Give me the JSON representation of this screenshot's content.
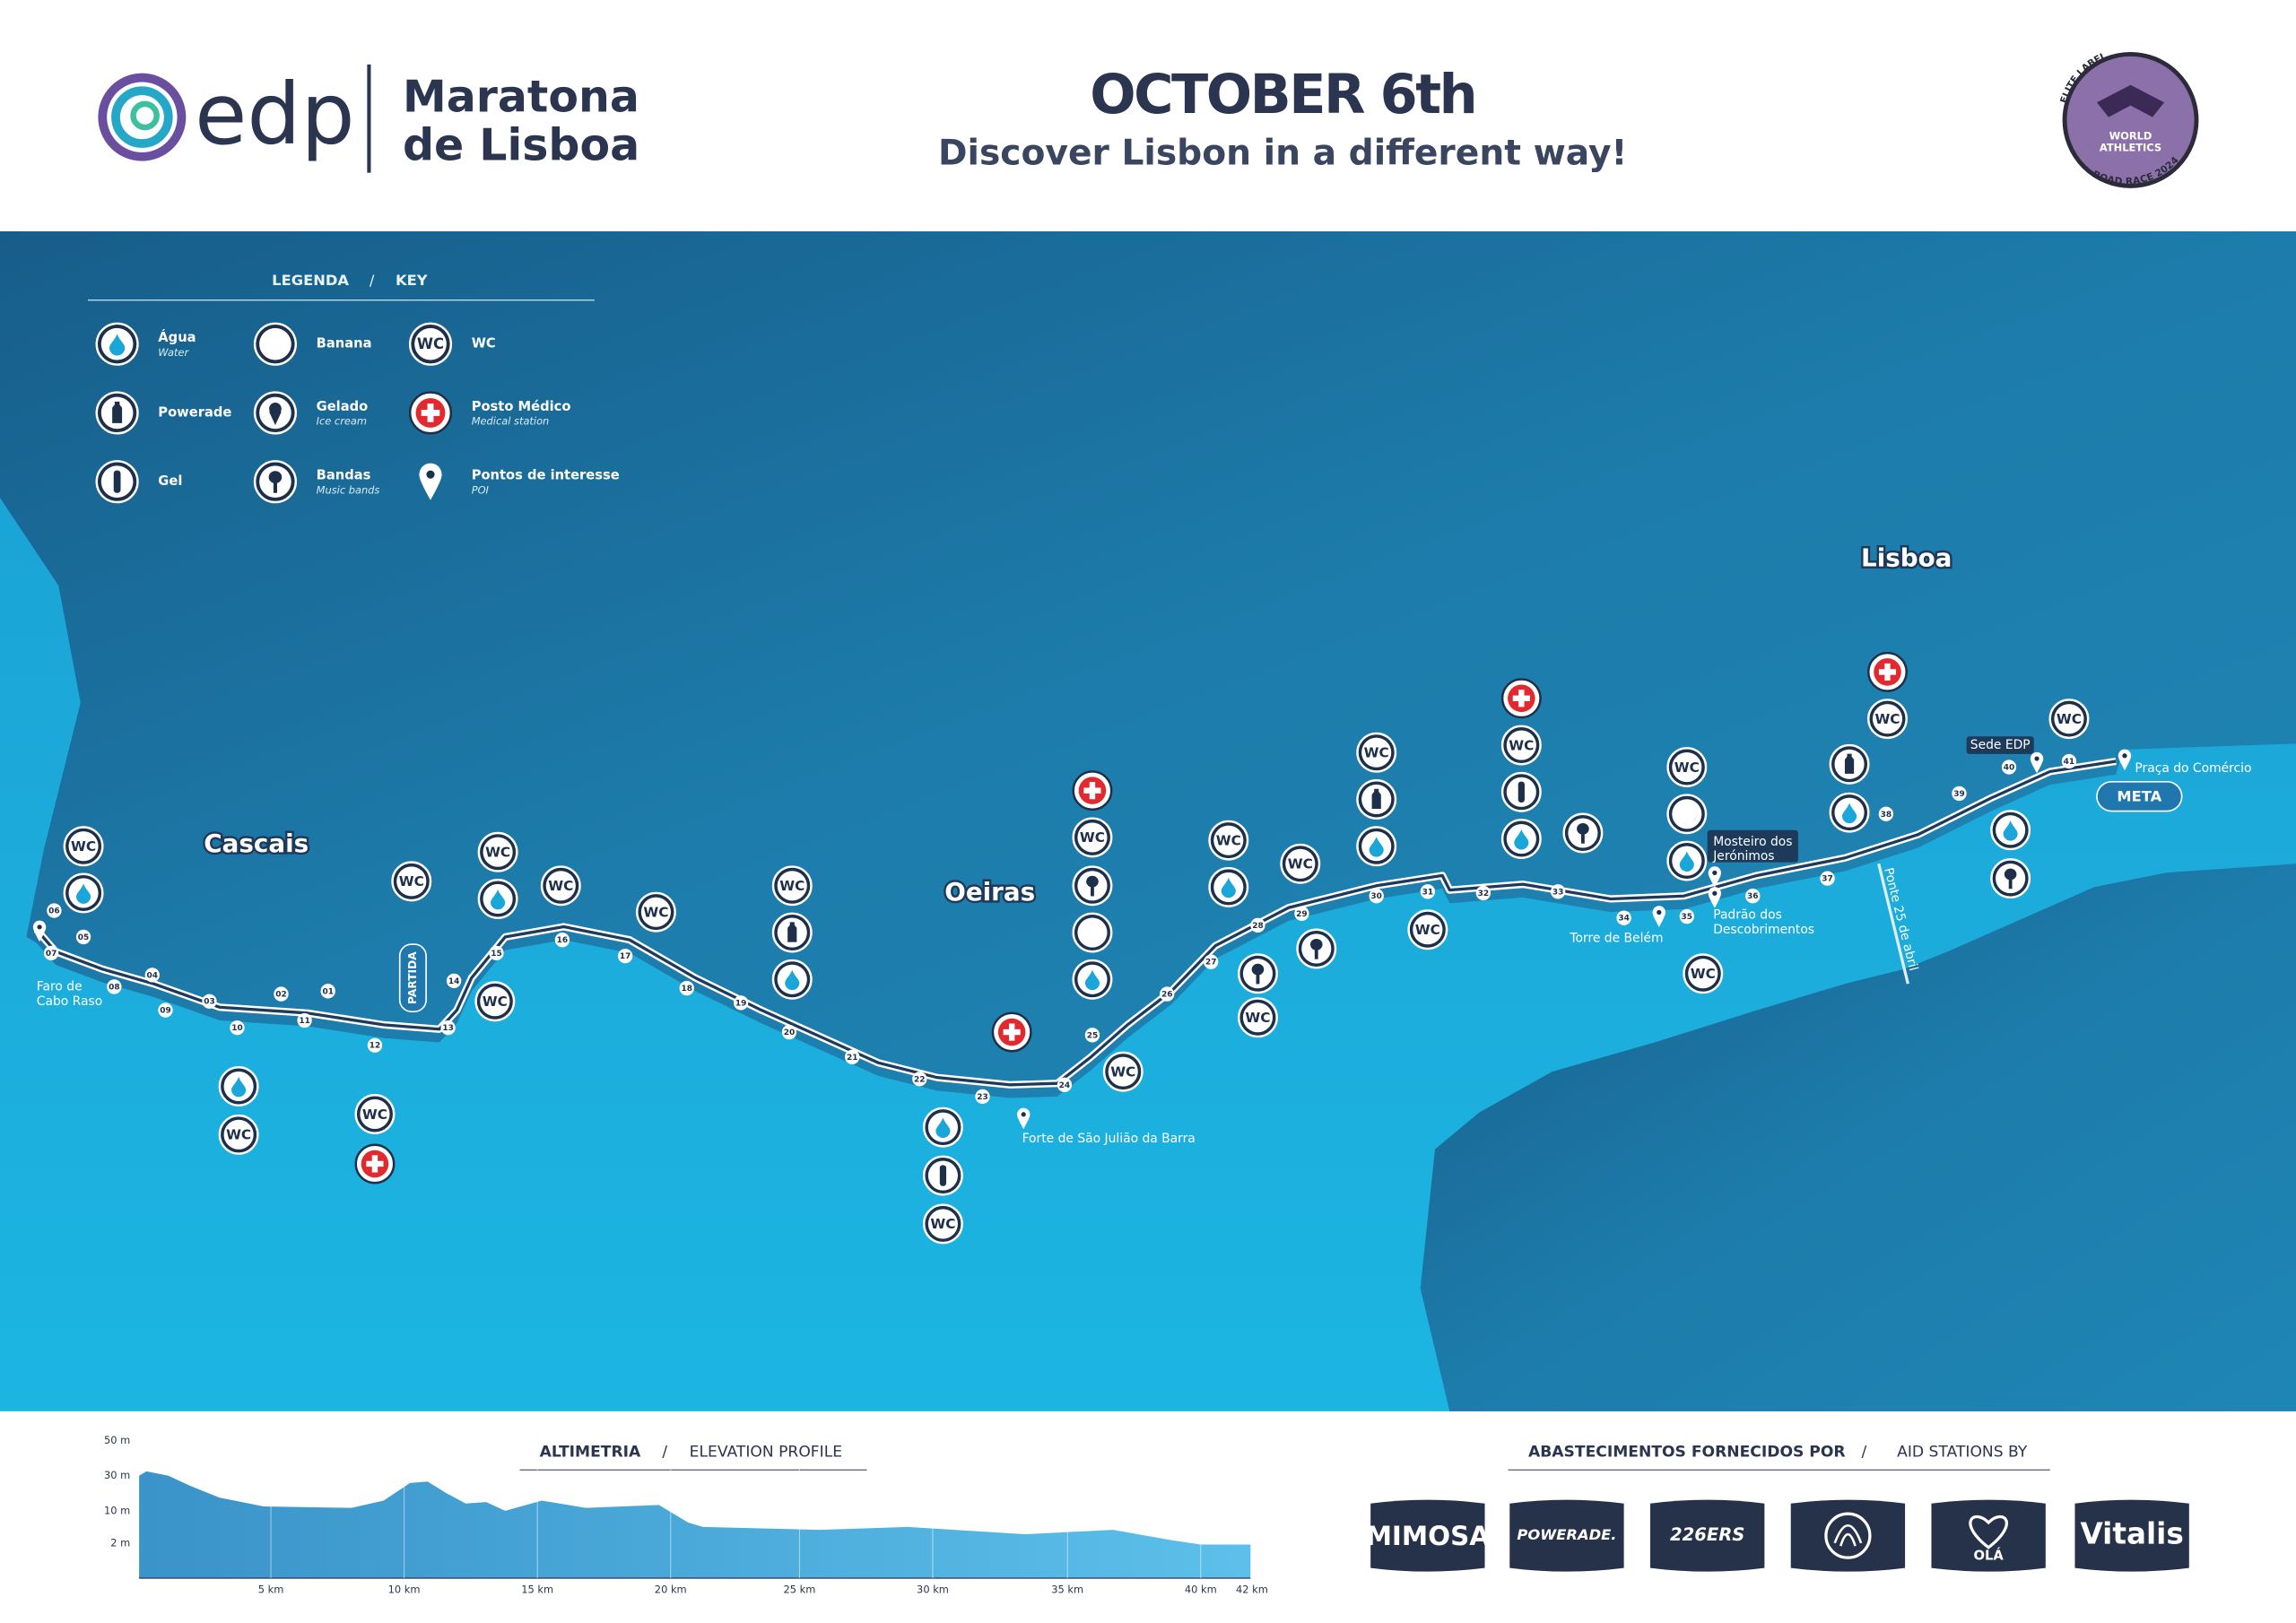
{
  "header": {
    "brand": "edp",
    "event_line1": "Maratona",
    "event_line2": "de Lisboa",
    "date": "OCTOBER 6th",
    "tagline": "Discover Lisbon in a different way!",
    "badge": {
      "top": "ELITE LABEL",
      "middle_1": "WORLD",
      "middle_2": "ATHLETICS",
      "bottom": "ROAD RACE 2024"
    }
  },
  "legend": {
    "title_pt": "LEGENDA",
    "separator": "/",
    "title_en": "KEY",
    "items": [
      {
        "label": "Água",
        "sublabel": "Water"
      },
      {
        "label": "Powerade"
      },
      {
        "label": "Gel"
      },
      {
        "label": "Banana"
      },
      {
        "label": "Gelado",
        "sublabel": "Ice cream"
      },
      {
        "label": "Bandas",
        "sublabel": "Music bands"
      },
      {
        "label": "WC"
      },
      {
        "label": "Posto Médico",
        "sublabel": "Medical station"
      },
      {
        "label": "Pontos de interesse",
        "sublabel": "POI"
      }
    ]
  },
  "map": {
    "places": [
      "Cascais",
      "Oeiras",
      "Lisboa"
    ],
    "start": "PARTIDA",
    "finish": "META",
    "icon_text": "WC",
    "pois": [
      {
        "lines": [
          "Faro de",
          "Cabo Raso"
        ]
      },
      {
        "lines": [
          "Forte de São Julião da Barra"
        ]
      },
      {
        "lines": [
          "Torre de Belém"
        ]
      },
      {
        "lines": [
          "Mosteiro dos",
          "Jerónimos"
        ]
      },
      {
        "lines": [
          "Padrão dos",
          "Descobrimentos"
        ]
      },
      {
        "lines": [
          "Ponte 25 de abril"
        ]
      },
      {
        "lines": [
          "Sede EDP"
        ]
      },
      {
        "lines": [
          "Praça do Comércio"
        ]
      }
    ],
    "km_markers": [
      "01",
      "02",
      "03",
      "04",
      "05",
      "06",
      "07",
      "08",
      "09",
      "10",
      "11",
      "12",
      "13",
      "14",
      "15",
      "16",
      "17",
      "18",
      "19",
      "20",
      "21",
      "22",
      "23",
      "24",
      "25",
      "26",
      "27",
      "28",
      "29",
      "30",
      "31",
      "32",
      "33",
      "34",
      "35",
      "36",
      "37",
      "38",
      "39",
      "40",
      "41"
    ]
  },
  "elevation": {
    "title_pt": "ALTIMETRIA",
    "separator": "/",
    "title_en": "ELEVATION PROFILE",
    "yticks": [
      "50 m",
      "30 m",
      "10 m",
      "2 m"
    ],
    "xticks": [
      "5 km",
      "10 km",
      "15 km",
      "20 km",
      "25 km",
      "30 km",
      "35 km",
      "40 km",
      "42 km"
    ]
  },
  "sponsors": {
    "title_pt": "ABASTECIMENTOS FORNECIDOS POR",
    "separator": "/",
    "title_en": "AID STATIONS BY",
    "logos": [
      "MIMOSA",
      "POWERADE.",
      "226ERS",
      "OLÁ",
      "Vitalis"
    ]
  }
}
